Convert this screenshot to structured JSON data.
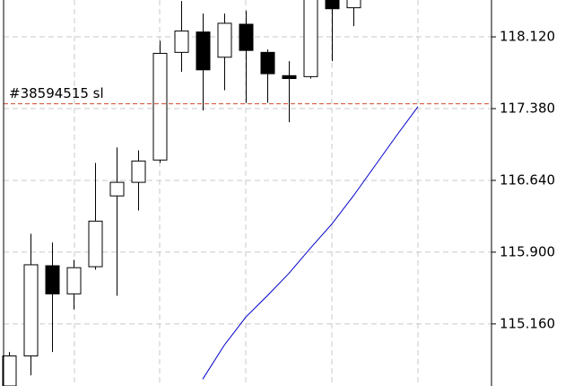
{
  "chart_data": {
    "type": "candlestick",
    "categories": [
      null,
      null,
      null,
      null,
      null,
      null,
      null,
      null,
      null,
      null,
      null,
      null,
      null,
      null,
      null,
      null,
      null,
      null,
      null,
      null
    ],
    "open": [
      114.52,
      114.83,
      115.76,
      115.47,
      115.75,
      116.48,
      116.62,
      116.85,
      117.96,
      118.17,
      117.91,
      118.25,
      117.96,
      117.72,
      117.71,
      118.5,
      118.42,
      null,
      null,
      null
    ],
    "high": [
      114.87,
      116.09,
      116.0,
      115.82,
      116.82,
      116.98,
      116.95,
      118.08,
      118.49,
      118.36,
      118.36,
      118.39,
      117.99,
      117.87,
      118.6,
      118.55,
      118.6,
      null,
      null,
      null
    ],
    "low": [
      114.52,
      114.63,
      114.87,
      115.31,
      115.72,
      115.45,
      116.33,
      116.82,
      117.76,
      117.36,
      117.57,
      117.44,
      117.44,
      117.24,
      117.69,
      117.87,
      118.23,
      null,
      null,
      null
    ],
    "close": [
      114.83,
      115.77,
      115.47,
      115.74,
      116.22,
      116.62,
      116.84,
      117.95,
      118.18,
      117.78,
      118.26,
      117.98,
      117.74,
      117.69,
      118.55,
      118.41,
      118.55,
      null,
      null,
      null
    ],
    "up_color": "#ffffff",
    "down_color": "#000000",
    "ma": {
      "color": "#0000cc",
      "values": [
        null,
        null,
        null,
        null,
        null,
        null,
        null,
        null,
        null,
        114.59,
        114.94,
        115.23,
        115.45,
        115.68,
        115.94,
        116.19,
        116.48,
        116.79,
        117.1,
        117.4
      ]
    },
    "annotation": {
      "label": "#38594515 sl",
      "value": 117.43,
      "color": "#d04a30"
    },
    "ylim": [
      114.52,
      118.5
    ],
    "yticks": [
      {
        "value": 115.16,
        "label": "115.160"
      },
      {
        "value": 115.9,
        "label": "115.900"
      },
      {
        "value": 116.64,
        "label": "116.640"
      },
      {
        "value": 117.38,
        "label": "117.380"
      },
      {
        "value": 118.12,
        "label": "118.120"
      }
    ],
    "grid": true
  }
}
